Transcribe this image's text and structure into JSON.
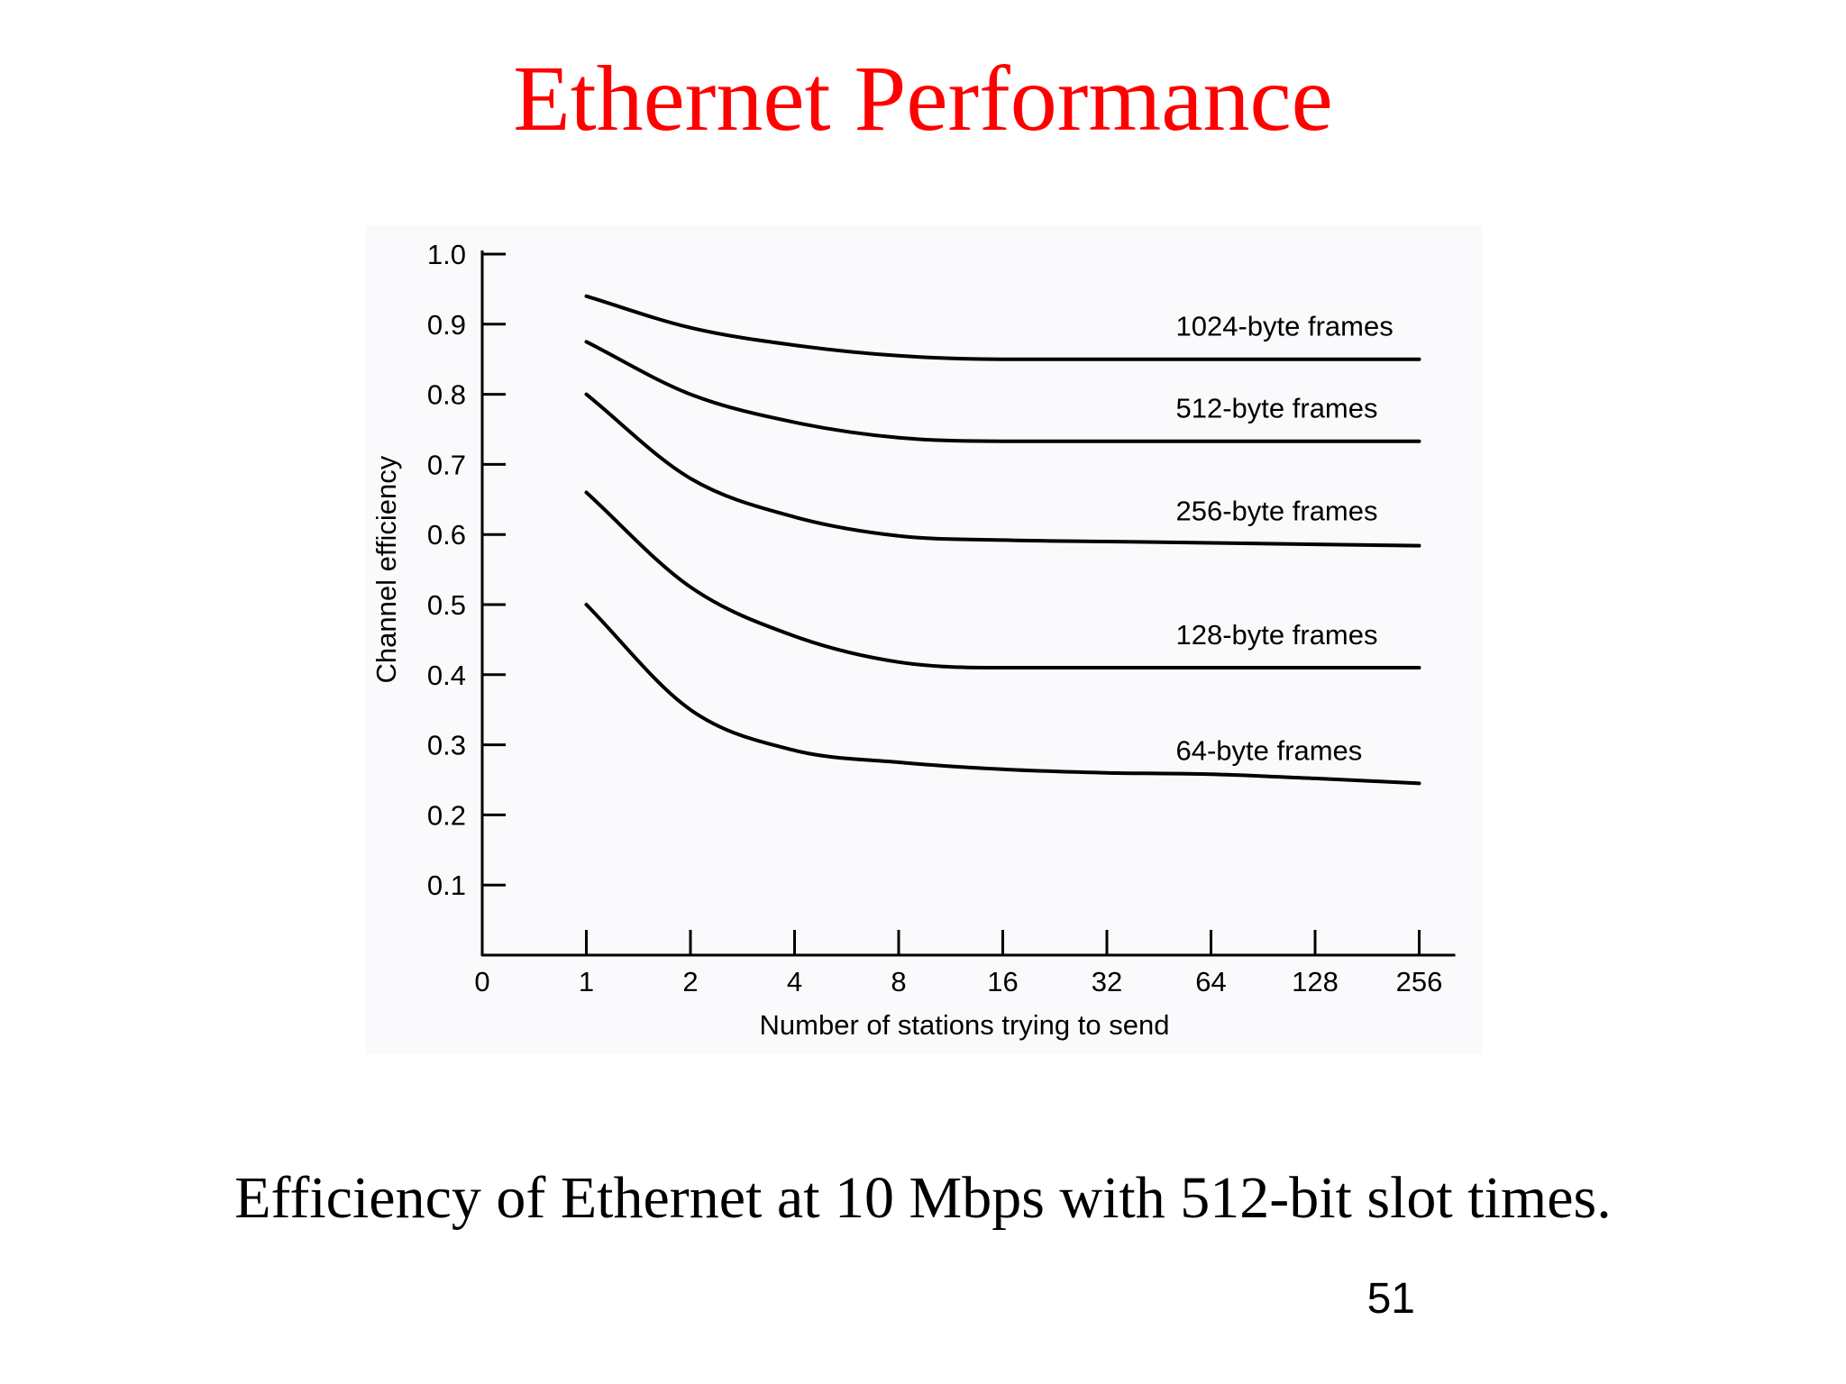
{
  "slide": {
    "title": "Ethernet Performance",
    "title_color": "#ff0000",
    "caption": "Efficiency of Ethernet at 10 Mbps with 512-bit slot times.",
    "page_number": "51"
  },
  "chart_data": {
    "type": "line",
    "title": "",
    "xlabel": "Number of stations trying to send",
    "ylabel": "Channel efficiency",
    "x_scale": "log2",
    "x_tick_labels": [
      "0",
      "1",
      "2",
      "4",
      "8",
      "16",
      "32",
      "64",
      "128",
      "256"
    ],
    "x": [
      1,
      2,
      4,
      8,
      16,
      32,
      64,
      128,
      256
    ],
    "ylim": [
      0,
      1.0
    ],
    "y_ticks": [
      0.1,
      0.2,
      0.3,
      0.4,
      0.5,
      0.6,
      0.7,
      0.8,
      0.9,
      1.0
    ],
    "y_tick_labels": [
      "0.1",
      "0.2",
      "0.3",
      "0.4",
      "0.5",
      "0.6",
      "0.7",
      "0.8",
      "0.9",
      "1.0"
    ],
    "grid": false,
    "legend": "inline labels above right end of each curve",
    "line_color": "#000000",
    "series": [
      {
        "name": "1024-byte frames",
        "values": [
          0.94,
          0.895,
          0.87,
          0.855,
          0.85,
          0.85,
          0.85,
          0.85,
          0.85
        ]
      },
      {
        "name": "512-byte frames",
        "values": [
          0.875,
          0.8,
          0.76,
          0.738,
          0.733,
          0.733,
          0.733,
          0.733,
          0.733
        ]
      },
      {
        "name": "256-byte frames",
        "values": [
          0.8,
          0.68,
          0.625,
          0.598,
          0.592,
          0.59,
          0.588,
          0.586,
          0.584
        ]
      },
      {
        "name": "128-byte frames",
        "values": [
          0.66,
          0.525,
          0.455,
          0.418,
          0.41,
          0.41,
          0.41,
          0.41,
          0.41
        ]
      },
      {
        "name": "64-byte frames",
        "values": [
          0.5,
          0.35,
          0.292,
          0.275,
          0.265,
          0.26,
          0.258,
          0.252,
          0.245
        ]
      }
    ]
  }
}
